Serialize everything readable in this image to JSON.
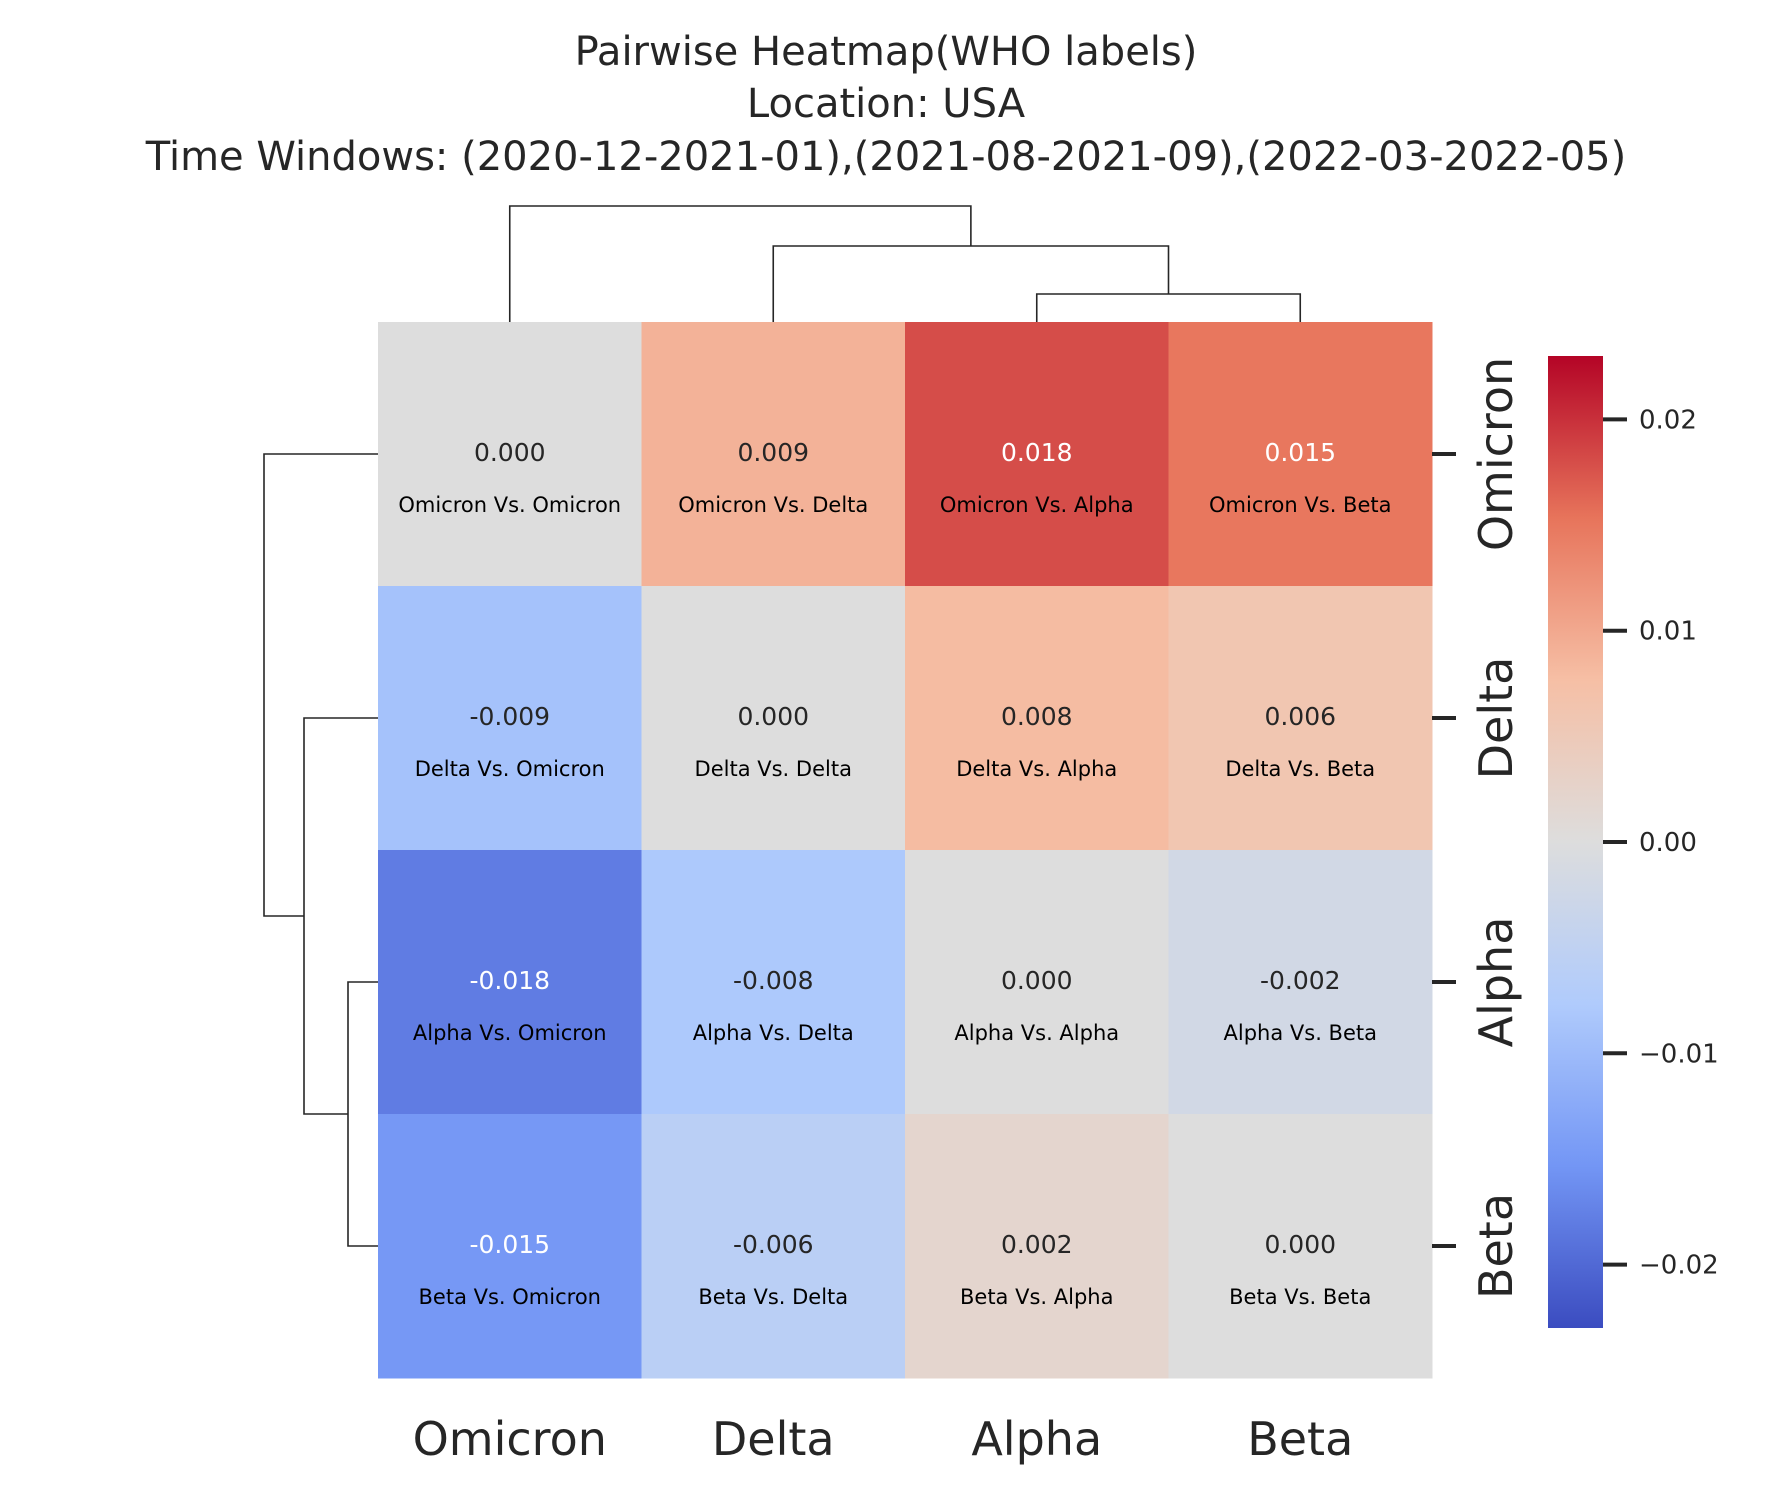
{
  "chart_data": {
    "type": "heatmap",
    "title_lines": [
      "Pairwise Heatmap(WHO labels)",
      "Location: USA",
      "Time Windows: (2020-12-2021-01),(2021-08-2021-09),(2022-03-2022-05)"
    ],
    "rows": [
      "Omicron",
      "Delta",
      "Alpha",
      "Beta"
    ],
    "columns": [
      "Omicron",
      "Delta",
      "Alpha",
      "Beta"
    ],
    "values": [
      [
        0.0,
        0.009,
        0.018,
        0.015
      ],
      [
        -0.009,
        0.0,
        0.008,
        0.006
      ],
      [
        -0.018,
        -0.008,
        0.0,
        -0.002
      ],
      [
        -0.015,
        -0.006,
        0.002,
        0.0
      ]
    ],
    "value_labels": [
      [
        "0.000",
        "0.009",
        "0.018",
        "0.015"
      ],
      [
        "-0.009",
        "0.000",
        "0.008",
        "0.006"
      ],
      [
        "-0.018",
        "-0.008",
        "0.000",
        "-0.002"
      ],
      [
        "-0.015",
        "-0.006",
        "0.002",
        "0.000"
      ]
    ],
    "cell_labels": [
      [
        "Omicron Vs. Omicron",
        "Omicron Vs. Delta",
        "Omicron Vs. Alpha",
        "Omicron Vs. Beta"
      ],
      [
        "Delta Vs. Omicron",
        "Delta Vs. Delta",
        "Delta Vs. Alpha",
        "Delta Vs. Beta"
      ],
      [
        "Alpha Vs. Omicron",
        "Alpha Vs. Delta",
        "Alpha Vs. Alpha",
        "Alpha Vs. Beta"
      ],
      [
        "Beta Vs. Omicron",
        "Beta Vs. Delta",
        "Beta Vs. Alpha",
        "Beta Vs. Beta"
      ]
    ],
    "colormap": "coolwarm",
    "colormap_stops": [
      "#3b4cc0",
      "#7396f5",
      "#b0cbfc",
      "#dddddd",
      "#f6bfa5",
      "#e7745b",
      "#b40426"
    ],
    "vmin": -0.023,
    "vmax": 0.023,
    "colorbar_ticks": [
      0.02,
      0.01,
      0.0,
      -0.01,
      -0.02
    ],
    "colorbar_tick_labels": [
      "0.02",
      "0.01",
      "0.00",
      "−0.01",
      "−0.02"
    ],
    "row_dendrogram": true,
    "column_dendrogram": true
  }
}
